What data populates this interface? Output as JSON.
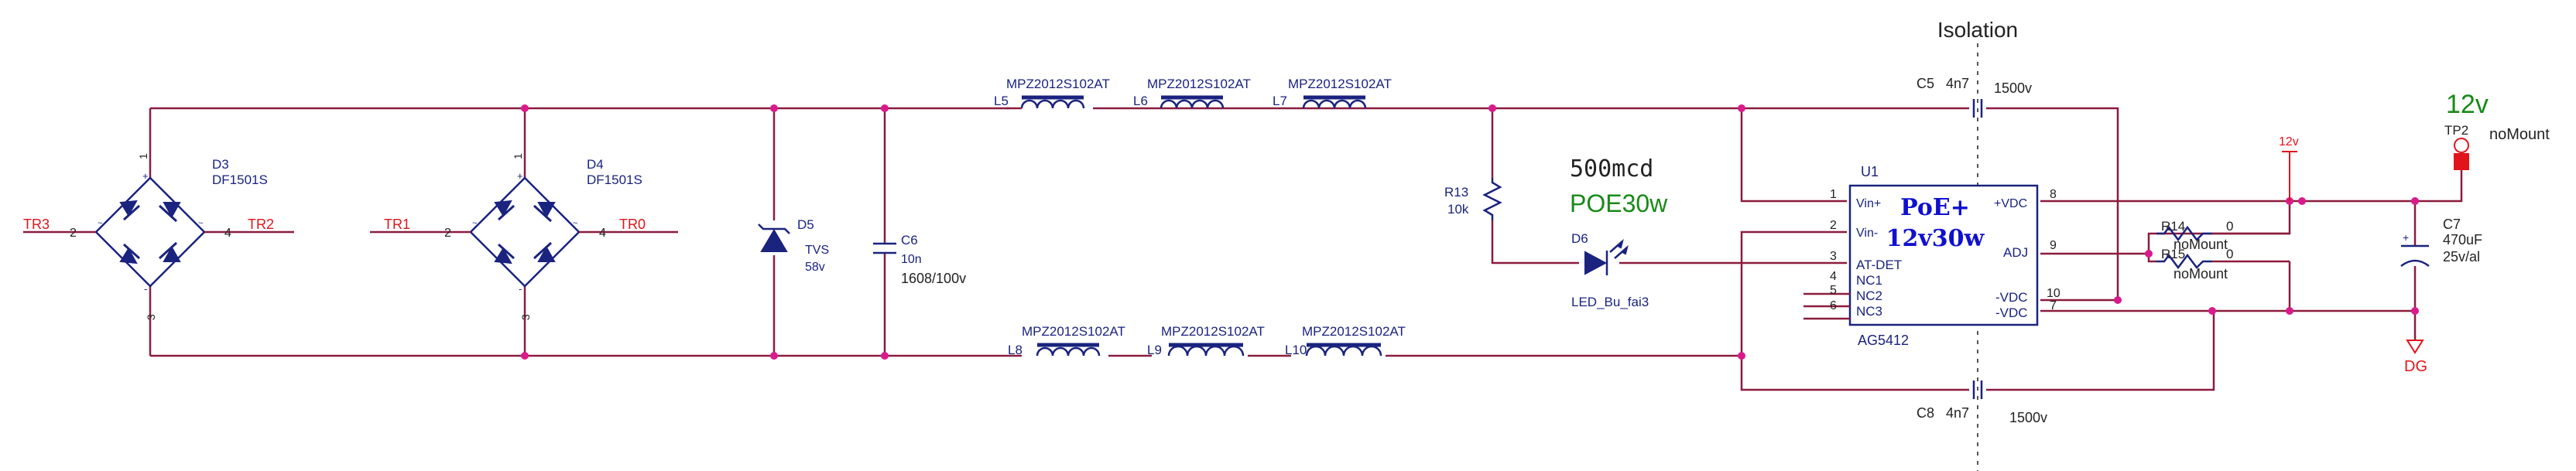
{
  "isolation": {
    "label": "Isolation"
  },
  "bridges": [
    {
      "ref": "D3",
      "part": "DF1501S",
      "pin_left": "2",
      "pin_right": "4",
      "pin_top": "1",
      "pin_bottom": "3",
      "net_left": "TR3",
      "net_right": "TR2"
    },
    {
      "ref": "D4",
      "part": "DF1501S",
      "pin_left": "2",
      "pin_right": "4",
      "pin_top": "1",
      "pin_bottom": "3",
      "net_left": "TR1",
      "net_right": "TR0"
    }
  ],
  "tvs": {
    "ref": "D5",
    "type": "TVS",
    "value": "58v"
  },
  "c6": {
    "ref": "C6",
    "value": "10n",
    "package": "1608/100v"
  },
  "inductors_top": [
    {
      "ref": "L5",
      "part": "MPZ2012S102AT"
    },
    {
      "ref": "L6",
      "part": "MPZ2012S102AT"
    },
    {
      "ref": "L7",
      "part": "MPZ2012S102AT"
    }
  ],
  "inductors_bottom": [
    {
      "ref": "L8",
      "part": "MPZ2012S102AT"
    },
    {
      "ref": "L9",
      "part": "MPZ2012S102AT"
    },
    {
      "ref": "L10",
      "part": "MPZ2012S102AT"
    }
  ],
  "r13": {
    "ref": "R13",
    "value": "10k"
  },
  "led": {
    "ref": "D6",
    "part": "LED_Bu_fai3",
    "note_brightness": "500mcd",
    "note_power": "POE30w"
  },
  "c5": {
    "ref": "C5",
    "value": "4n7",
    "voltage": "1500v"
  },
  "c8": {
    "ref": "C8",
    "value": "4n7",
    "voltage": "1500v"
  },
  "u1": {
    "ref": "U1",
    "part": "AG5412",
    "title_line1": "PoE+",
    "title_line2": "12v30w",
    "left_pins": [
      {
        "num": "1",
        "name": "Vin+"
      },
      {
        "num": "2",
        "name": "Vin-"
      },
      {
        "num": "3",
        "name": "AT-DET"
      },
      {
        "num": "4",
        "name": "NC1"
      },
      {
        "num": "5",
        "name": "NC2"
      },
      {
        "num": "6",
        "name": "NC3"
      }
    ],
    "right_pins": [
      {
        "num": "8",
        "name": "+VDC"
      },
      {
        "num": "9",
        "name": "ADJ"
      },
      {
        "num": "10",
        "name": "-VDC"
      },
      {
        "num": "7",
        "name": "-VDC"
      }
    ]
  },
  "r14": {
    "ref": "R14",
    "value": "0",
    "note": "noMount"
  },
  "r15": {
    "ref": "R15",
    "value": "0",
    "note": "noMount"
  },
  "c7": {
    "ref": "C7",
    "value": "470uF",
    "rating": "25v/al"
  },
  "power_12v": {
    "label": "12v"
  },
  "tp2": {
    "ref": "TP2",
    "voltage_label": "12v",
    "note": "noMount"
  },
  "ground": {
    "label": "DG"
  }
}
